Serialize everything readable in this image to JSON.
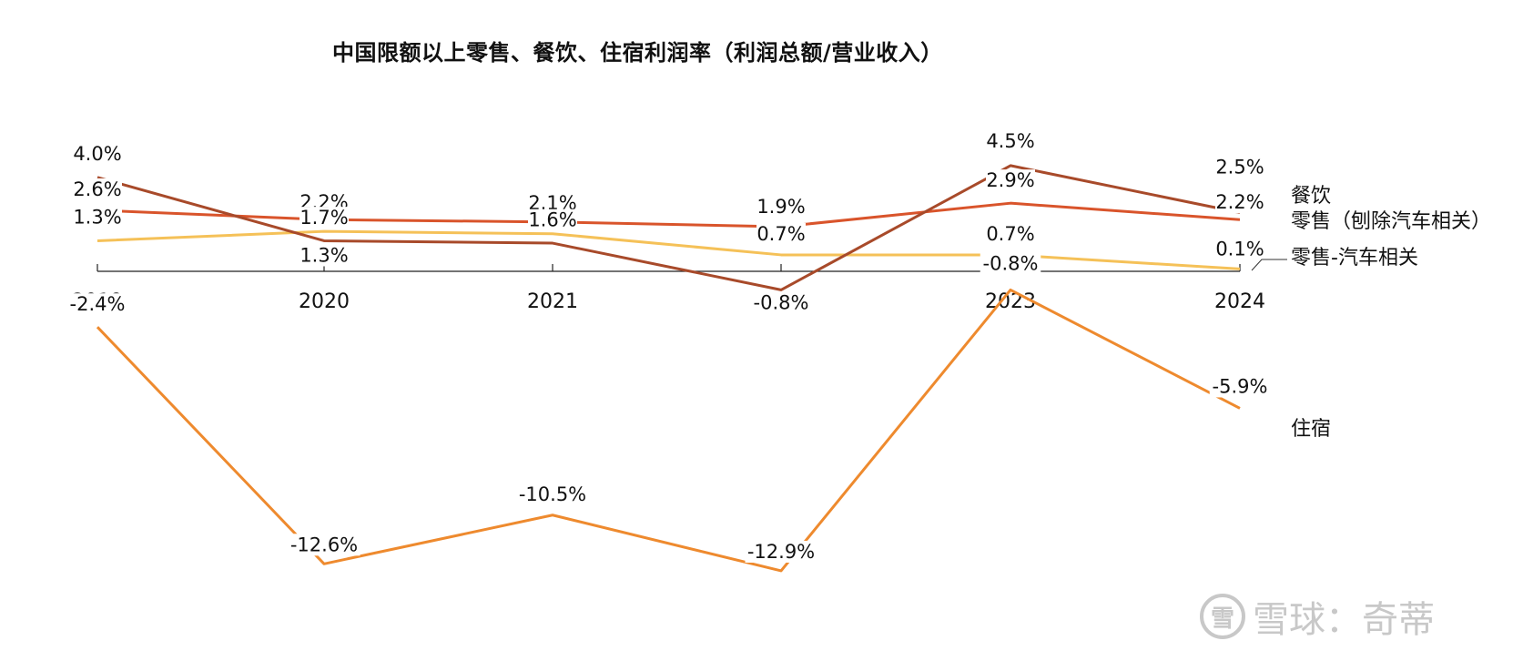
{
  "chart_data": {
    "type": "line",
    "title": "中国限额以上零售、餐饮、住宿利润率（利润总额/营业收入）",
    "categories": [
      "2019",
      "2020",
      "2021",
      "2022",
      "2023",
      "2024"
    ],
    "ylim": [
      -13.5,
      5.5
    ],
    "grid": false,
    "series": [
      {
        "name": "餐饮",
        "color": "#a84a2a",
        "values": [
          4.0,
          1.3,
          1.2,
          -0.8,
          4.5,
          2.5
        ],
        "labels": [
          "4.0%",
          "1.3%",
          "",
          "-0.8%",
          "4.5%",
          "2.5%"
        ]
      },
      {
        "name": "零售（刨除汽车相关）",
        "color": "#d9542b",
        "values": [
          2.6,
          2.2,
          2.1,
          1.9,
          2.9,
          2.2
        ],
        "labels": [
          "2.6%",
          "2.2%",
          "2.1%",
          "1.9%",
          "2.9%",
          "2.2%"
        ]
      },
      {
        "name": "零售-汽车相关",
        "color": "#f5c158",
        "values": [
          1.3,
          1.7,
          1.6,
          0.7,
          0.7,
          0.1
        ],
        "labels": [
          "1.3%",
          "1.7%",
          "1.6%",
          "0.7%",
          "0.7%",
          "0.1%"
        ]
      },
      {
        "name": "住宿",
        "color": "#ee8a2e",
        "values": [
          -2.4,
          -12.6,
          -10.5,
          -12.9,
          -0.8,
          -5.9
        ],
        "labels": [
          "-2.4%",
          "-12.6%",
          "-10.5%",
          "-12.9%",
          "-0.8%",
          "-5.9%"
        ]
      }
    ]
  },
  "watermark": {
    "logo": "雪",
    "text": "雪球：奇蒂"
  }
}
